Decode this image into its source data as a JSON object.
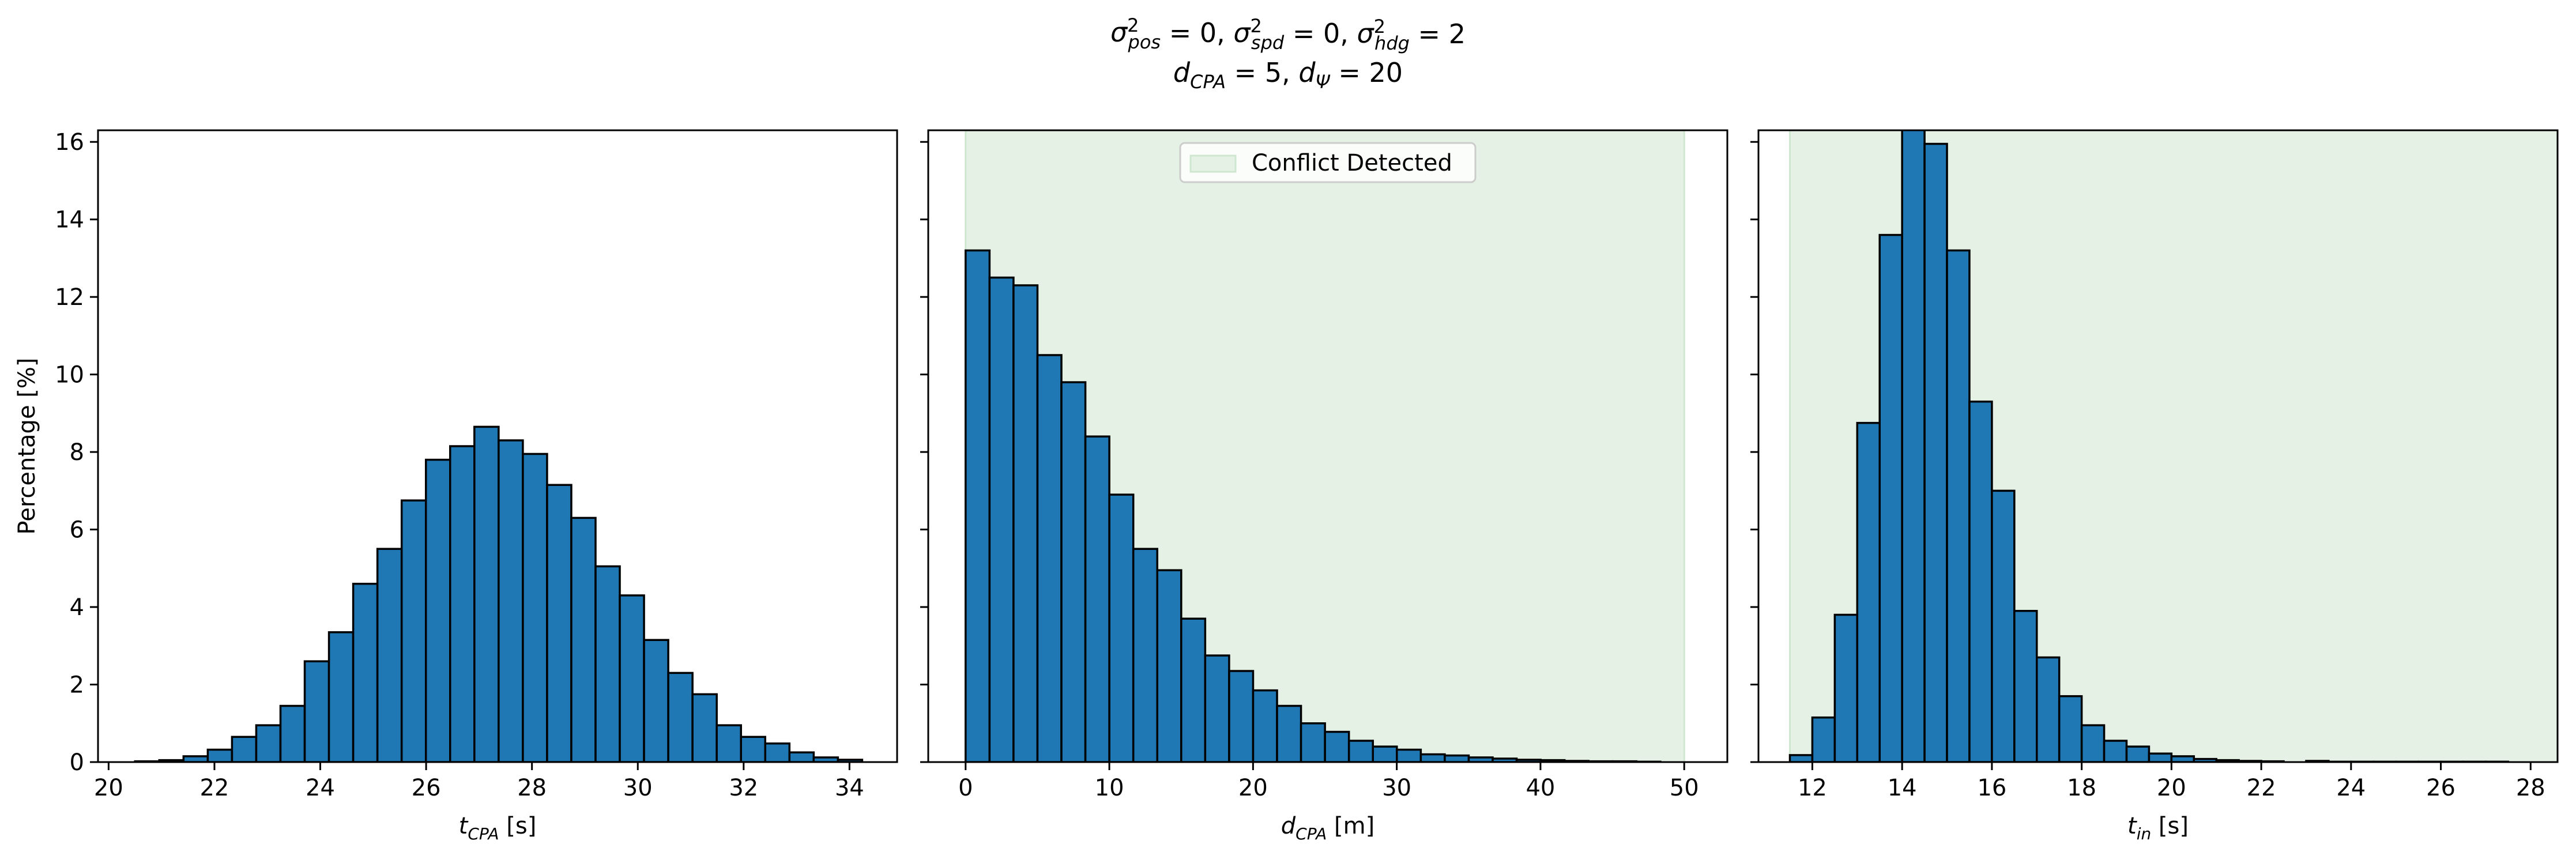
{
  "figure": {
    "title_line1": "σ²pos = 0, σ²spd = 0, σ²hdg = 2",
    "title_line2": "dCPA = 5, dΨ = 20",
    "title_line1_parts": [
      {
        "t": "σ",
        "s": "n"
      },
      {
        "t": "2",
        "s": "sup"
      },
      {
        "t": "pos",
        "s": "sub"
      },
      {
        "t": " = 0, ",
        "s": "n"
      },
      {
        "t": "σ",
        "s": "n"
      },
      {
        "t": "2",
        "s": "sup"
      },
      {
        "t": "spd",
        "s": "sub"
      },
      {
        "t": " = 0, ",
        "s": "n"
      },
      {
        "t": "σ",
        "s": "n"
      },
      {
        "t": "2",
        "s": "sup"
      },
      {
        "t": "hdg",
        "s": "sub"
      },
      {
        "t": " = 2",
        "s": "n"
      }
    ],
    "title_line2_parts": [
      {
        "t": "d",
        "s": "n"
      },
      {
        "t": "CPA",
        "s": "sub"
      },
      {
        "t": " = 5, ",
        "s": "n"
      },
      {
        "t": "d",
        "s": "n"
      },
      {
        "t": "Ψ",
        "s": "sub"
      },
      {
        "t": " = 20",
        "s": "n"
      }
    ]
  },
  "colors": {
    "bar_fill": "#1f77b4",
    "bar_edge": "#000000",
    "shade_fill": "#e5f1e5",
    "shade_edge": "#cfe6cf"
  },
  "chart_data": [
    {
      "type": "bar",
      "ylabel": "Percentage [%]",
      "xlabel_parts": [
        {
          "t": "t",
          "s": "n"
        },
        {
          "t": "CPA",
          "s": "sub"
        },
        {
          "t": " [s]",
          "s": "n"
        }
      ],
      "xlim": [
        19.8,
        34.9
      ],
      "ylim": [
        0,
        16.3
      ],
      "xticks": [
        20,
        22,
        24,
        26,
        28,
        30,
        32,
        34
      ],
      "yticks": [
        0,
        2,
        4,
        6,
        8,
        10,
        12,
        14,
        16
      ],
      "show_yticklabels": true,
      "bin_start": 20.5,
      "bin_width": 0.458,
      "values": [
        0.02,
        0.05,
        0.15,
        0.32,
        0.65,
        0.95,
        1.45,
        2.6,
        3.35,
        4.6,
        5.5,
        6.75,
        7.8,
        8.15,
        8.65,
        8.3,
        7.95,
        7.15,
        6.3,
        5.05,
        4.3,
        3.15,
        2.3,
        1.75,
        0.95,
        0.65,
        0.48,
        0.25,
        0.12,
        0.06
      ]
    },
    {
      "type": "bar",
      "ylabel": "",
      "xlabel_parts": [
        {
          "t": "d",
          "s": "n"
        },
        {
          "t": "CPA",
          "s": "sub"
        },
        {
          "t": " [m]",
          "s": "n"
        }
      ],
      "xlim": [
        -2.6,
        53.0
      ],
      "ylim": [
        0,
        16.3
      ],
      "xticks": [
        0,
        10,
        20,
        30,
        40,
        50
      ],
      "yticks": [
        0,
        2,
        4,
        6,
        8,
        10,
        12,
        14,
        16
      ],
      "show_yticklabels": false,
      "shade": {
        "x0": 0,
        "x1": 50
      },
      "legend": {
        "label": "Conflict Detected",
        "loc": "upper center"
      },
      "bin_start": 0,
      "bin_width": 1.667,
      "values": [
        13.2,
        12.5,
        12.3,
        10.5,
        9.8,
        8.4,
        6.9,
        5.5,
        4.95,
        3.7,
        2.75,
        2.35,
        1.85,
        1.45,
        1.0,
        0.78,
        0.55,
        0.4,
        0.32,
        0.2,
        0.17,
        0.12,
        0.09,
        0.06,
        0.05,
        0.03,
        0.02,
        0.02,
        0.01
      ]
    },
    {
      "type": "bar",
      "ylabel": "",
      "xlabel_parts": [
        {
          "t": "t",
          "s": "n"
        },
        {
          "t": "in",
          "s": "sub"
        },
        {
          "t": " [s]",
          "s": "n"
        }
      ],
      "xlim": [
        10.8,
        28.6
      ],
      "ylim": [
        0,
        16.3
      ],
      "xticks": [
        12,
        14,
        16,
        18,
        20,
        22,
        24,
        26,
        28
      ],
      "yticks": [
        0,
        2,
        4,
        6,
        8,
        10,
        12,
        14,
        16
      ],
      "show_yticklabels": false,
      "shade": {
        "x0": 11.5,
        "x1": 28.6
      },
      "bin_start": 11.5,
      "bin_width": 0.5,
      "values": [
        0.18,
        1.15,
        3.8,
        8.75,
        13.6,
        16.5,
        15.95,
        13.2,
        9.3,
        7.0,
        3.9,
        2.7,
        1.7,
        0.95,
        0.55,
        0.4,
        0.22,
        0.15,
        0.08,
        0.05,
        0.03,
        0.02,
        0.0,
        0.03,
        0.01,
        0.01,
        0.01,
        0.01,
        0.01,
        0.01,
        0.01,
        0.01
      ]
    }
  ]
}
